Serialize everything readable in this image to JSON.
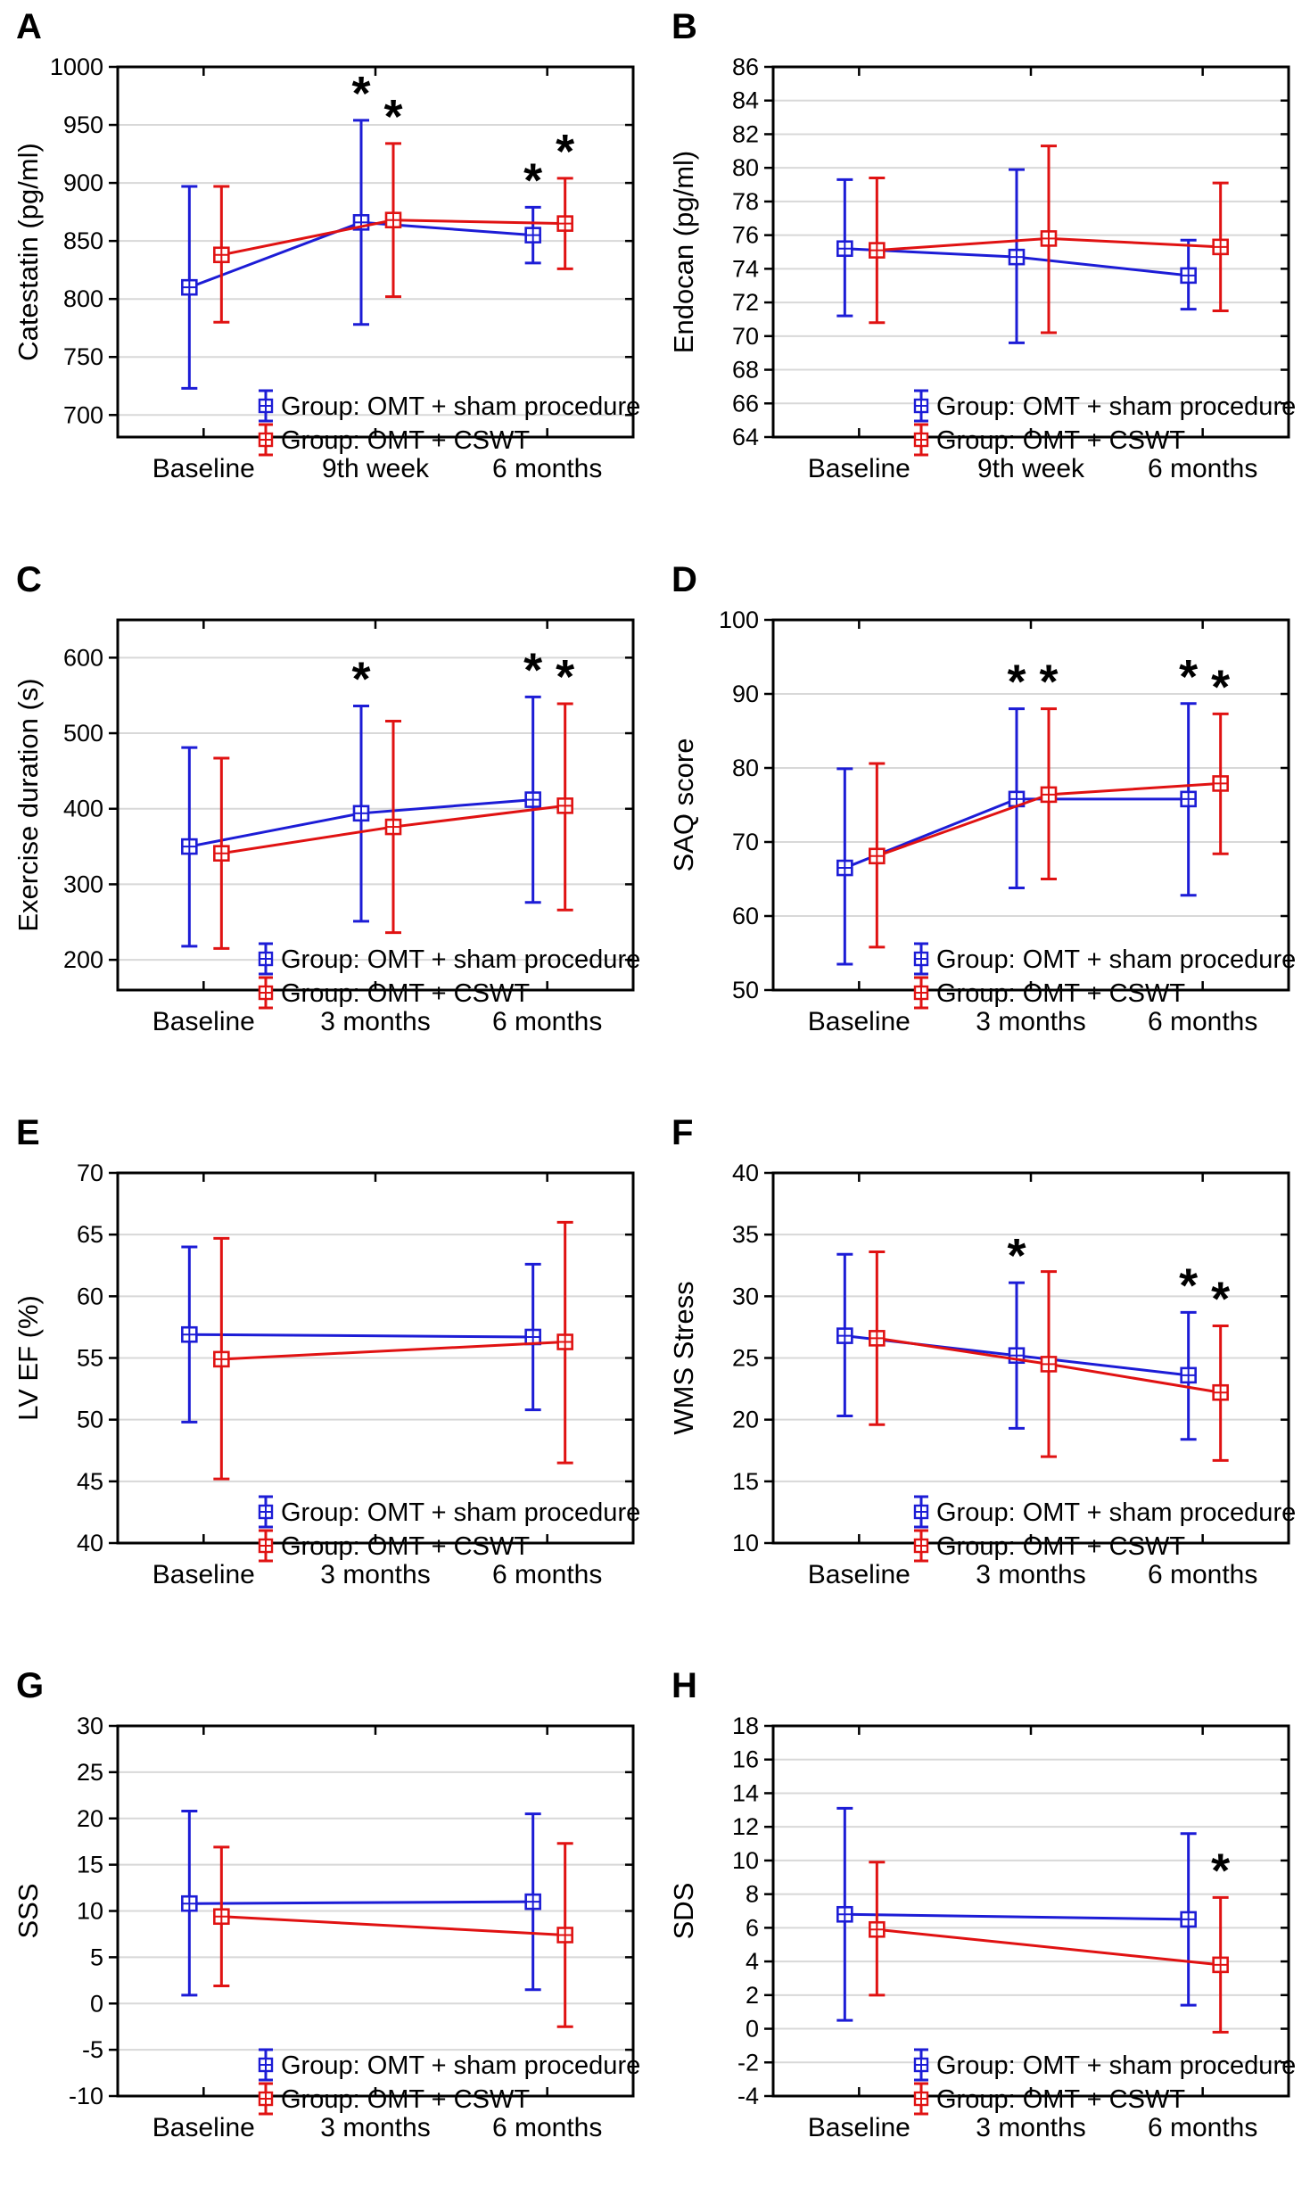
{
  "colors": {
    "sham": "#1c1cd6",
    "cswt": "#e01212",
    "grid": "#d8d8d8",
    "frame": "#000000",
    "text": "#000000",
    "background": "#ffffff"
  },
  "legend": {
    "rows": [
      {
        "key": "sham",
        "label": "Group: OMT + sham procedure"
      },
      {
        "key": "cswt",
        "label": "Group: OMT + CSWT"
      }
    ]
  },
  "chart_data": [
    {
      "panel": "A",
      "type": "line",
      "ylabel": "Catestatin (pg/ml)",
      "categories": [
        "Baseline",
        "9th week",
        "6 months"
      ],
      "ylim": [
        681,
        1000
      ],
      "yticks": [
        700,
        750,
        800,
        850,
        900,
        950,
        1000
      ],
      "grid": true,
      "legend_position": "bottom-right-inside",
      "series": [
        {
          "name": "Group: OMT + sham procedure",
          "color_key": "sham",
          "values": [
            810,
            866,
            855
          ],
          "lo": [
            723,
            778,
            831
          ],
          "hi": [
            897,
            954,
            879
          ],
          "stars": [
            false,
            true,
            true
          ]
        },
        {
          "name": "Group: OMT + CSWT",
          "color_key": "cswt",
          "values": [
            838,
            868,
            865
          ],
          "lo": [
            780,
            802,
            826
          ],
          "hi": [
            897,
            934,
            904
          ],
          "stars": [
            false,
            true,
            true
          ]
        }
      ]
    },
    {
      "panel": "B",
      "type": "line",
      "ylabel": "Endocan (pg/ml)",
      "categories": [
        "Baseline",
        "9th week",
        "6 months"
      ],
      "ylim": [
        64,
        86
      ],
      "yticks": [
        64,
        66,
        68,
        70,
        72,
        74,
        76,
        78,
        80,
        82,
        84,
        86
      ],
      "grid": true,
      "legend_position": "bottom-right-inside",
      "series": [
        {
          "name": "Group: OMT + sham procedure",
          "color_key": "sham",
          "values": [
            75.2,
            74.7,
            73.6
          ],
          "lo": [
            71.2,
            69.6,
            71.6
          ],
          "hi": [
            79.3,
            79.9,
            75.7
          ],
          "stars": [
            false,
            false,
            false
          ]
        },
        {
          "name": "Group: OMT + CSWT",
          "color_key": "cswt",
          "values": [
            75.1,
            75.8,
            75.3
          ],
          "lo": [
            70.8,
            70.2,
            71.5
          ],
          "hi": [
            79.4,
            81.3,
            79.1
          ],
          "stars": [
            false,
            false,
            false
          ]
        }
      ]
    },
    {
      "panel": "C",
      "type": "line",
      "ylabel": "Exercise duration (s)",
      "categories": [
        "Baseline",
        "3 months",
        "6 months"
      ],
      "ylim": [
        160,
        650
      ],
      "yticks": [
        200,
        300,
        400,
        500,
        600
      ],
      "grid": true,
      "legend_position": "bottom-right-inside",
      "series": [
        {
          "name": "Group: OMT + sham procedure",
          "color_key": "sham",
          "values": [
            350,
            394,
            412
          ],
          "lo": [
            218,
            251,
            276
          ],
          "hi": [
            481,
            536,
            548
          ],
          "stars": [
            false,
            true,
            true
          ]
        },
        {
          "name": "Group: OMT + CSWT",
          "color_key": "cswt",
          "values": [
            341,
            376,
            404
          ],
          "lo": [
            215,
            236,
            266
          ],
          "hi": [
            467,
            516,
            539
          ],
          "stars": [
            false,
            false,
            true
          ]
        }
      ]
    },
    {
      "panel": "D",
      "type": "line",
      "ylabel": "SAQ score",
      "categories": [
        "Baseline",
        "3 months",
        "6 months"
      ],
      "ylim": [
        50,
        100
      ],
      "yticks": [
        50,
        60,
        70,
        80,
        90,
        100
      ],
      "grid": true,
      "legend_position": "bottom-right-inside",
      "series": [
        {
          "name": "Group: OMT + sham procedure",
          "color_key": "sham",
          "values": [
            66.5,
            75.8,
            75.8
          ],
          "lo": [
            53.5,
            63.8,
            62.8
          ],
          "hi": [
            79.9,
            88.0,
            88.7
          ],
          "stars": [
            false,
            true,
            true
          ]
        },
        {
          "name": "Group: OMT + CSWT",
          "color_key": "cswt",
          "values": [
            68.1,
            76.4,
            77.9
          ],
          "lo": [
            55.8,
            65.0,
            68.4
          ],
          "hi": [
            80.6,
            88.0,
            87.3
          ],
          "stars": [
            false,
            true,
            true
          ]
        }
      ]
    },
    {
      "panel": "E",
      "type": "line",
      "ylabel": "LV EF (%)",
      "categories": [
        "Baseline",
        "3 months",
        "6 months"
      ],
      "ylim": [
        40,
        70
      ],
      "yticks": [
        40,
        45,
        50,
        55,
        60,
        65,
        70
      ],
      "grid": true,
      "legend_position": "bottom-right-inside",
      "series": [
        {
          "name": "Group: OMT + sham procedure",
          "color_key": "sham",
          "values": [
            56.9,
            null,
            56.7
          ],
          "lo": [
            49.8,
            null,
            50.8
          ],
          "hi": [
            64.0,
            null,
            62.6
          ],
          "stars": [
            false,
            false,
            false
          ]
        },
        {
          "name": "Group: OMT + CSWT",
          "color_key": "cswt",
          "values": [
            54.9,
            null,
            56.3
          ],
          "lo": [
            45.2,
            null,
            46.5
          ],
          "hi": [
            64.7,
            null,
            66.0
          ],
          "stars": [
            false,
            false,
            false
          ]
        }
      ]
    },
    {
      "panel": "F",
      "type": "line",
      "ylabel": "WMS Stress",
      "categories": [
        "Baseline",
        "3 months",
        "6 months"
      ],
      "ylim": [
        10,
        40
      ],
      "yticks": [
        10,
        15,
        20,
        25,
        30,
        35,
        40
      ],
      "grid": true,
      "legend_position": "bottom-right-inside",
      "series": [
        {
          "name": "Group: OMT + sham procedure",
          "color_key": "sham",
          "values": [
            26.8,
            25.2,
            23.6
          ],
          "lo": [
            20.3,
            19.3,
            18.4
          ],
          "hi": [
            33.4,
            31.1,
            28.7
          ],
          "stars": [
            false,
            true,
            true
          ]
        },
        {
          "name": "Group: OMT + CSWT",
          "color_key": "cswt",
          "values": [
            26.6,
            24.5,
            22.2
          ],
          "lo": [
            19.6,
            17.0,
            16.7
          ],
          "hi": [
            33.6,
            32.0,
            27.6
          ],
          "stars": [
            false,
            false,
            true
          ]
        }
      ]
    },
    {
      "panel": "G",
      "type": "line",
      "ylabel": "SSS",
      "categories": [
        "Baseline",
        "3 months",
        "6 months"
      ],
      "ylim": [
        -10,
        30
      ],
      "yticks": [
        -10,
        -5,
        0,
        5,
        10,
        15,
        20,
        25,
        30
      ],
      "grid": true,
      "legend_position": "bottom-right-inside",
      "series": [
        {
          "name": "Group: OMT + sham procedure",
          "color_key": "sham",
          "values": [
            10.8,
            null,
            11.0
          ],
          "lo": [
            0.9,
            null,
            1.5
          ],
          "hi": [
            20.8,
            null,
            20.5
          ],
          "stars": [
            false,
            false,
            false
          ]
        },
        {
          "name": "Group: OMT + CSWT",
          "color_key": "cswt",
          "values": [
            9.4,
            null,
            7.4
          ],
          "lo": [
            1.9,
            null,
            -2.5
          ],
          "hi": [
            16.9,
            null,
            17.3
          ],
          "stars": [
            false,
            false,
            false
          ]
        }
      ]
    },
    {
      "panel": "H",
      "type": "line",
      "ylabel": "SDS",
      "categories": [
        "Baseline",
        "3 months",
        "6 months"
      ],
      "ylim": [
        -4,
        18
      ],
      "yticks": [
        -4,
        -2,
        0,
        2,
        4,
        6,
        8,
        10,
        12,
        14,
        16,
        18
      ],
      "grid": true,
      "legend_position": "bottom-right-inside",
      "series": [
        {
          "name": "Group: OMT + sham procedure",
          "color_key": "sham",
          "values": [
            6.8,
            null,
            6.5
          ],
          "lo": [
            0.5,
            null,
            1.4
          ],
          "hi": [
            13.1,
            null,
            11.6
          ],
          "stars": [
            false,
            false,
            false
          ]
        },
        {
          "name": "Group: OMT + CSWT",
          "color_key": "cswt",
          "values": [
            5.9,
            null,
            3.8
          ],
          "lo": [
            2.0,
            null,
            -0.2
          ],
          "hi": [
            9.9,
            null,
            7.8
          ],
          "stars": [
            false,
            false,
            true
          ]
        }
      ]
    }
  ]
}
